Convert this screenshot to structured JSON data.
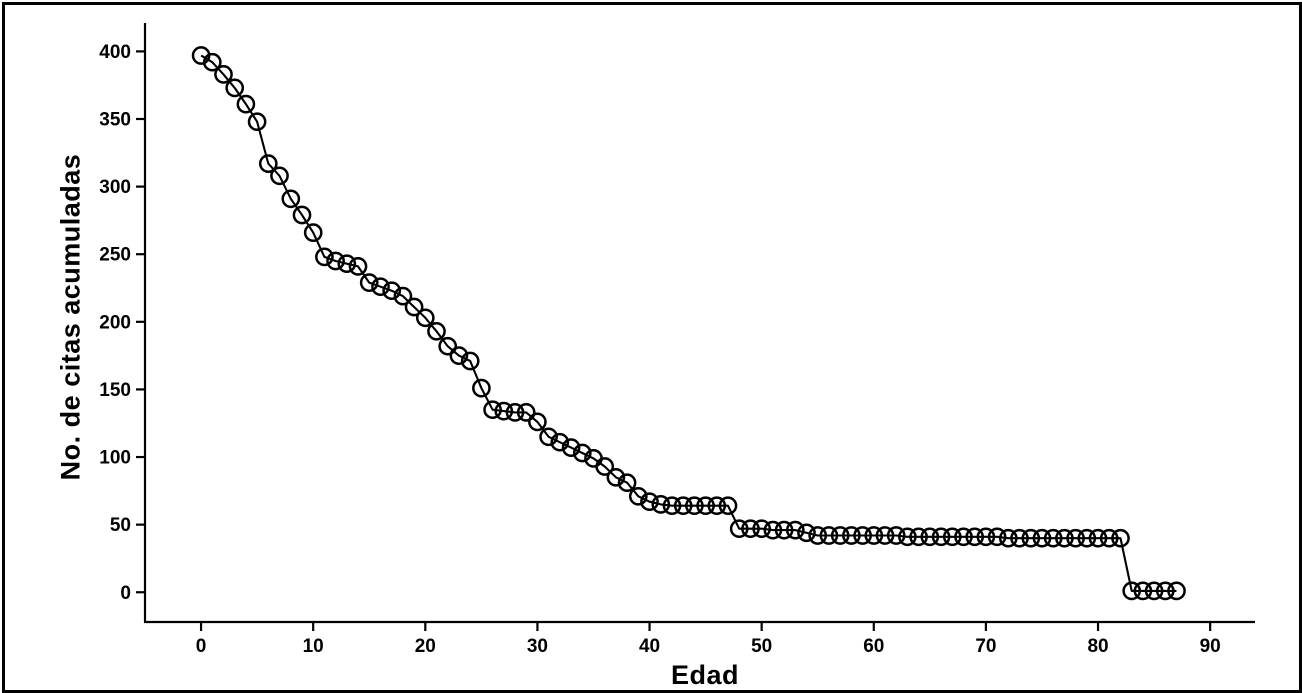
{
  "figure": {
    "background": "#ffffff",
    "border_color": "#000000",
    "ink_color": "#000000"
  },
  "chart_data": {
    "type": "line",
    "title": "",
    "xlabel": "Edad",
    "ylabel": "No. de citas acumuladas",
    "x_ticks": [
      0,
      10,
      20,
      30,
      40,
      50,
      60,
      70,
      80,
      90
    ],
    "y_ticks": [
      0,
      50,
      100,
      150,
      200,
      250,
      300,
      350,
      400
    ],
    "xlim": [
      -5,
      94
    ],
    "ylim": [
      -22,
      421
    ],
    "grid": false,
    "legend": "none",
    "marker": "open-circle",
    "line_color": "#000000",
    "series": [
      {
        "name": "No. de citas acumuladas",
        "x": [
          0,
          1,
          2,
          3,
          4,
          5,
          6,
          7,
          8,
          9,
          10,
          11,
          12,
          13,
          14,
          15,
          16,
          17,
          18,
          19,
          20,
          21,
          22,
          23,
          24,
          25,
          26,
          27,
          28,
          29,
          30,
          31,
          32,
          33,
          34,
          35,
          36,
          37,
          38,
          39,
          40,
          41,
          42,
          43,
          44,
          45,
          46,
          47,
          48,
          49,
          50,
          51,
          52,
          53,
          54,
          55,
          56,
          57,
          58,
          59,
          60,
          61,
          62,
          63,
          64,
          65,
          66,
          67,
          68,
          69,
          70,
          71,
          72,
          73,
          74,
          75,
          76,
          77,
          78,
          79,
          80,
          81,
          82,
          83,
          84,
          85,
          86,
          87
        ],
        "y": [
          397,
          392,
          383,
          373,
          361,
          348,
          317,
          308,
          291,
          279,
          266,
          248,
          245,
          243,
          241,
          229,
          226,
          223,
          219,
          211,
          203,
          193,
          182,
          175,
          171,
          151,
          135,
          134,
          133,
          133,
          126,
          115,
          111,
          107,
          103,
          99,
          93,
          85,
          81,
          71,
          67,
          65,
          64,
          64,
          64,
          64,
          64,
          64,
          47,
          47,
          47,
          46,
          46,
          46,
          44,
          42,
          42,
          42,
          42,
          42,
          42,
          42,
          42,
          41,
          41,
          41,
          41,
          41,
          41,
          41,
          41,
          41,
          40,
          40,
          40,
          40,
          40,
          40,
          40,
          40,
          40,
          40,
          40,
          1,
          1,
          1,
          1,
          1
        ]
      }
    ]
  }
}
